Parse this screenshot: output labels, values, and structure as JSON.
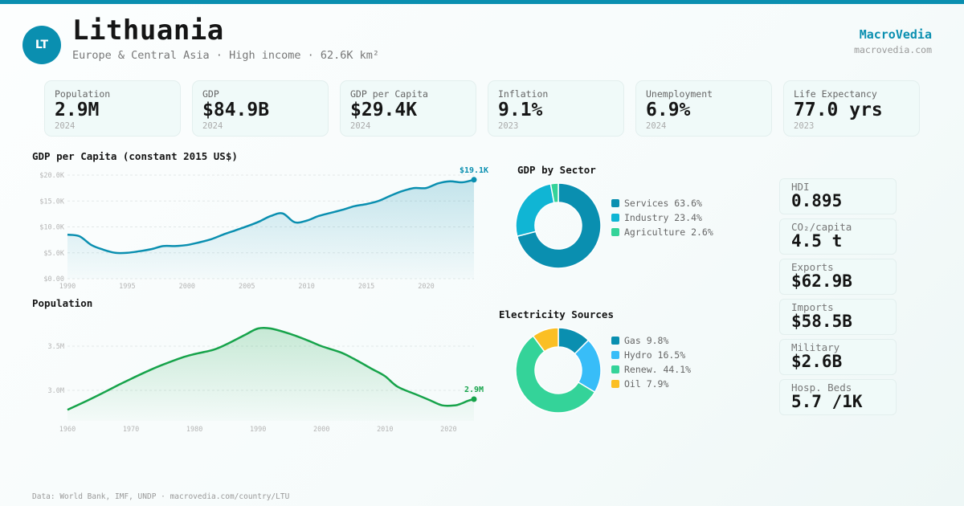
{
  "theme": {
    "accent": "#0a8fb0",
    "green": "#16a34a"
  },
  "header": {
    "avatar_initials": "LT",
    "country": "Lithuania",
    "subtitle": "Europe & Central Asia · High income · 62.6K km²",
    "brand": "MacroVedia",
    "brand_url": "macrovedia.com"
  },
  "kpis": [
    {
      "label": "Population",
      "value": "2.9M",
      "year": "2024"
    },
    {
      "label": "GDP",
      "value": "$84.9B",
      "year": "2024"
    },
    {
      "label": "GDP per Capita",
      "value": "$29.4K",
      "year": "2024"
    },
    {
      "label": "Inflation",
      "value": "9.1%",
      "year": "2023"
    },
    {
      "label": "Unemployment",
      "value": "6.9%",
      "year": "2024"
    },
    {
      "label": "Life Expectancy",
      "value": "77.0 yrs",
      "year": "2023"
    }
  ],
  "side_stats": [
    {
      "label": "HDI",
      "value": "0.895"
    },
    {
      "label": "CO₂/capita",
      "value": "4.5 t"
    },
    {
      "label": "Exports",
      "value": "$62.9B"
    },
    {
      "label": "Imports",
      "value": "$58.5B"
    },
    {
      "label": "Military",
      "value": "$2.6B"
    },
    {
      "label": "Hosp. Beds",
      "value": "5.7 /1K"
    }
  ],
  "footer": "Data: World Bank, IMF, UNDP · macrovedia.com/country/LTU",
  "chart_data": [
    {
      "id": "gdp_per_capita",
      "type": "area",
      "title": "GDP per Capita (constant 2015 US$)",
      "color": "#0a8fb0",
      "ylim": [
        0,
        20000
      ],
      "yticks": [
        0,
        5000,
        10000,
        15000,
        20000
      ],
      "ytick_labels": [
        "$0.00",
        "$5.0K",
        "$10.0K",
        "$15.0K",
        "$20.0K"
      ],
      "xlim": [
        1990,
        2024
      ],
      "xticks": [
        1990,
        1995,
        2000,
        2005,
        2010,
        2015,
        2020
      ],
      "end_label": "$19.1K",
      "x": [
        1990,
        1991,
        1992,
        1993,
        1994,
        1995,
        1996,
        1997,
        1998,
        1999,
        2000,
        2001,
        2002,
        2003,
        2004,
        2005,
        2006,
        2007,
        2008,
        2009,
        2010,
        2011,
        2012,
        2013,
        2014,
        2015,
        2016,
        2017,
        2018,
        2019,
        2020,
        2021,
        2022,
        2023,
        2024
      ],
      "values": [
        8500,
        8200,
        6500,
        5600,
        5000,
        5000,
        5300,
        5700,
        6300,
        6300,
        6500,
        7000,
        7600,
        8500,
        9300,
        10100,
        11000,
        12100,
        12600,
        10900,
        11200,
        12100,
        12700,
        13300,
        14000,
        14400,
        15000,
        16000,
        16900,
        17500,
        17500,
        18400,
        18800,
        18600,
        19100
      ]
    },
    {
      "id": "population",
      "type": "area",
      "title": "Population",
      "color": "#16a34a",
      "ylim": [
        2.6,
        3.9
      ],
      "yticks": [
        3.0,
        3.5
      ],
      "ytick_labels": [
        "3.0M",
        "3.5M"
      ],
      "xlim": [
        1960,
        2024
      ],
      "xticks": [
        1960,
        1970,
        1980,
        1990,
        2000,
        2010,
        2020
      ],
      "end_label": "2.9M",
      "x": [
        1960,
        1963,
        1965,
        1968,
        1970,
        1973,
        1975,
        1978,
        1980,
        1983,
        1985,
        1988,
        1990,
        1992,
        1995,
        1998,
        2000,
        2003,
        2005,
        2008,
        2010,
        2012,
        2015,
        2017,
        2019,
        2021,
        2022,
        2023,
        2024
      ],
      "values": [
        2.78,
        2.88,
        2.95,
        3.06,
        3.13,
        3.23,
        3.29,
        3.37,
        3.41,
        3.46,
        3.52,
        3.63,
        3.7,
        3.7,
        3.64,
        3.56,
        3.5,
        3.43,
        3.36,
        3.24,
        3.16,
        3.04,
        2.95,
        2.89,
        2.83,
        2.83,
        2.85,
        2.88,
        2.9
      ]
    },
    {
      "id": "gdp_by_sector",
      "type": "pie",
      "title": "GDP by Sector",
      "donut": true,
      "categories": [
        "Services",
        "Industry",
        "Agriculture"
      ],
      "values": [
        63.6,
        23.4,
        2.6
      ],
      "labels": [
        "Services 63.6%",
        "Industry 23.4%",
        "Agriculture 2.6%"
      ],
      "colors": [
        "#0a8fb0",
        "#10b5d4",
        "#34d399"
      ]
    },
    {
      "id": "electricity_sources",
      "type": "pie",
      "title": "Electricity Sources",
      "donut": true,
      "categories": [
        "Gas",
        "Hydro",
        "Renew.",
        "Oil"
      ],
      "values": [
        9.8,
        16.5,
        44.1,
        7.9
      ],
      "labels": [
        "Gas 9.8%",
        "Hydro 16.5%",
        "Renew. 44.1%",
        "Oil 7.9%"
      ],
      "colors": [
        "#0a8fb0",
        "#38bdf8",
        "#34d399",
        "#fbbf24"
      ]
    }
  ]
}
